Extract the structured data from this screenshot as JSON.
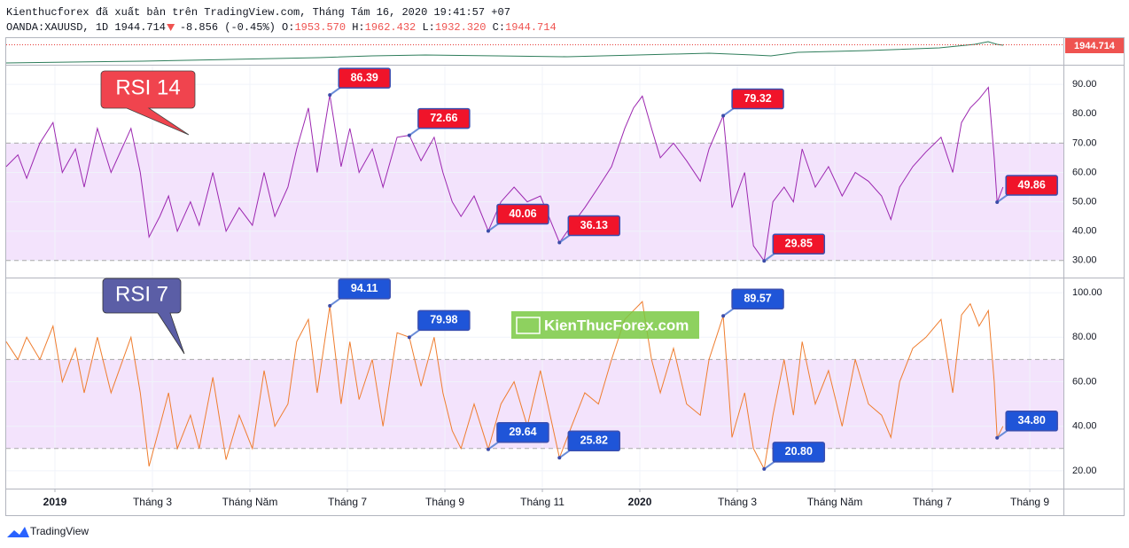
{
  "header": {
    "title": "Kienthucforex đã xuất bản trên TradingView.com, Tháng Tám 16, 2020 19:41:57 +07",
    "symbol": "OANDA:XAUUSD, 1D",
    "last": "1944.714",
    "change": "-8.856 (-0.45%)",
    "ohlc": [
      {
        "key": "O:",
        "value": "1953.570"
      },
      {
        "key": "H:",
        "value": "1962.432"
      },
      {
        "key": "L:",
        "value": "1932.320"
      },
      {
        "key": "C:",
        "value": "1944.714"
      }
    ]
  },
  "price_label": "1944.714",
  "watermark": "KienThucForex.com",
  "footer": "TradingView",
  "chart_data": [
    {
      "type": "line",
      "title": "RSI 14",
      "title_color": "#f0444e",
      "x": [
        0,
        0.24,
        0.42,
        0.69,
        0.96,
        1.15,
        1.42,
        1.6,
        1.87,
        2.15,
        2.56,
        2.75,
        2.93,
        3.15,
        3.33,
        3.51,
        3.78,
        3.96,
        4.24,
        4.51,
        4.78,
        5.05,
        5.29,
        5.51,
        5.78,
        5.96,
        6.2,
        6.38,
        6.64,
        6.87,
        7.05,
        7.24,
        7.51,
        7.73,
        8.02,
        8.27,
        8.51,
        8.78,
        8.96,
        9.15,
        9.33,
        9.6,
        9.89,
        10.15,
        10.42,
        10.69,
        10.96,
        11.35,
        11.6,
        11.87,
        12.15,
        12.42,
        12.69,
        12.87,
        13.05,
        13.24,
        13.42,
        13.69,
        13.96,
        14.24,
        14.42,
        14.71,
        14.89,
        15.15,
        15.33,
        15.55,
        15.73,
        15.96,
        16.15,
        16.33,
        16.6,
        16.87,
        17.15,
        17.42,
        17.69,
        17.96,
        18.15,
        18.33,
        18.6,
        18.87,
        19.18,
        19.42,
        19.6,
        19.78,
        19.96,
        20.15,
        20.27,
        20.33,
        20.45
      ],
      "series": [
        {
          "color": "#9c27b0",
          "values": [
            62,
            66,
            58,
            70,
            77,
            60,
            68,
            55,
            75,
            60,
            75,
            60,
            38,
            45,
            52,
            40,
            50,
            42,
            60,
            40,
            48,
            42,
            60,
            45,
            55,
            68,
            82,
            60,
            86.39,
            62,
            75,
            60,
            68,
            55,
            72,
            72.66,
            64,
            72,
            60,
            50,
            45,
            52,
            40.06,
            50,
            55,
            50,
            52,
            36.13,
            42,
            48,
            55,
            62,
            75,
            82,
            86,
            75,
            65,
            70,
            64,
            57,
            68,
            79.32,
            48,
            60,
            35,
            29.85,
            50,
            55,
            50,
            68,
            55,
            62,
            52,
            60,
            57,
            52,
            44,
            55,
            62,
            67,
            72,
            60,
            77,
            82,
            85,
            89,
            65,
            49.86,
            55
          ]
        }
      ],
      "annotations": [
        86.39,
        72.66,
        40.06,
        36.13,
        79.32,
        29.85,
        49.86
      ],
      "annotation_color": "#f0142a",
      "band": [
        30,
        70
      ],
      "band_color": "#f3e3fc",
      "xlim": [
        0,
        21.69
      ],
      "ylim": [
        24.2,
        96.4
      ],
      "yticks": [
        {
          "value": 30,
          "label": "30.00"
        },
        {
          "value": 40,
          "label": "40.00"
        },
        {
          "value": 50,
          "label": "50.00"
        },
        {
          "value": 60,
          "label": "60.00"
        },
        {
          "value": 70,
          "label": "70.00"
        },
        {
          "value": 80,
          "label": "80.00"
        },
        {
          "value": 90,
          "label": "90.00"
        }
      ]
    },
    {
      "type": "line",
      "title": "RSI 7",
      "title_color": "#5b5ea6",
      "x": [
        0,
        0.24,
        0.42,
        0.69,
        0.96,
        1.15,
        1.42,
        1.6,
        1.87,
        2.15,
        2.56,
        2.75,
        2.93,
        3.15,
        3.33,
        3.51,
        3.78,
        3.96,
        4.24,
        4.51,
        4.78,
        5.05,
        5.29,
        5.51,
        5.78,
        5.96,
        6.2,
        6.38,
        6.64,
        6.87,
        7.05,
        7.24,
        7.51,
        7.73,
        8.02,
        8.27,
        8.51,
        8.78,
        8.96,
        9.15,
        9.33,
        9.6,
        9.89,
        10.15,
        10.42,
        10.69,
        10.96,
        11.35,
        11.6,
        11.87,
        12.15,
        12.42,
        12.69,
        12.87,
        13.05,
        13.24,
        13.42,
        13.69,
        13.96,
        14.24,
        14.42,
        14.71,
        14.89,
        15.15,
        15.33,
        15.55,
        15.73,
        15.96,
        16.15,
        16.33,
        16.6,
        16.87,
        17.15,
        17.42,
        17.69,
        17.96,
        18.15,
        18.33,
        18.6,
        18.87,
        19.18,
        19.42,
        19.6,
        19.78,
        19.96,
        20.15,
        20.27,
        20.33,
        20.45
      ],
      "series": [
        {
          "color": "#ef7d2f",
          "values": [
            78,
            70,
            80,
            70,
            85,
            60,
            75,
            55,
            80,
            55,
            80,
            55,
            22,
            40,
            55,
            30,
            45,
            30,
            62,
            25,
            45,
            30,
            65,
            40,
            50,
            78,
            88,
            55,
            94.11,
            50,
            78,
            52,
            70,
            40,
            82,
            79.98,
            58,
            80,
            55,
            38,
            30,
            50,
            29.64,
            50,
            60,
            40,
            65,
            25.82,
            40,
            55,
            50,
            70,
            88,
            92,
            96,
            70,
            55,
            75,
            50,
            45,
            70,
            89.57,
            35,
            55,
            30,
            20.8,
            45,
            70,
            45,
            78,
            50,
            65,
            40,
            70,
            50,
            45,
            35,
            60,
            75,
            80,
            88,
            55,
            90,
            95,
            85,
            92,
            60,
            34.8,
            40
          ]
        }
      ],
      "annotations": [
        94.11,
        79.98,
        29.64,
        25.82,
        89.57,
        {
          "value": 20.8,
          "label": "20.80"
        },
        {
          "value": 34.8,
          "label": "34.80"
        }
      ],
      "annotation_color": "#1f55d8",
      "band": [
        30,
        70
      ],
      "band_color": "#f3e3fc",
      "xlim": [
        0,
        21.69
      ],
      "ylim": [
        12,
        106.4
      ],
      "yticks": [
        {
          "value": 20,
          "label": "20.00"
        },
        {
          "value": 40,
          "label": "40.00"
        },
        {
          "value": 60,
          "label": "60.00"
        },
        {
          "value": 80,
          "label": "80.00"
        },
        {
          "value": 100,
          "label": "100.00"
        }
      ],
      "xticks": [
        {
          "value": 1,
          "label": "2019"
        },
        {
          "value": 3,
          "label": "Tháng 3"
        },
        {
          "value": 5,
          "label": "Tháng Năm"
        },
        {
          "value": 7,
          "label": "Tháng 7"
        },
        {
          "value": 9,
          "label": "Tháng 9"
        },
        {
          "value": 11,
          "label": "Tháng 11"
        },
        {
          "value": 13,
          "label": "2020"
        },
        {
          "value": 15,
          "label": "Tháng 3"
        },
        {
          "value": 17,
          "label": "Tháng Năm"
        },
        {
          "value": 19,
          "label": "Tháng 7"
        },
        {
          "value": 21,
          "label": "Tháng 9"
        }
      ]
    }
  ]
}
